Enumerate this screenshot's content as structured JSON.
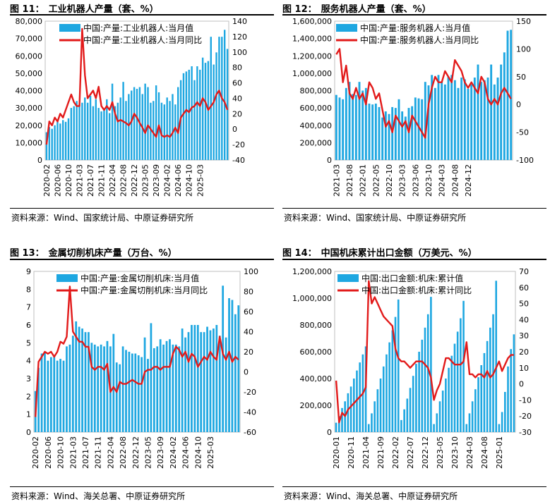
{
  "source_label": "资料来源：",
  "colors": {
    "bar": "#1ea7e1",
    "line": "#e21a1a",
    "frame": "#bfbfbf",
    "text": "#000000"
  },
  "charts": [
    {
      "fig_label": "图 11：",
      "title": "工业机器人产量（套、%）",
      "source": "Wind、国家统计局、中原证券研究所",
      "legend": [
        "中国:产量:工业机器人:当月值",
        "中国:产量:工业机器人:当月同比"
      ],
      "chart_data": {
        "type": "bar+line",
        "x_labels": [
          "2020-02",
          "2020-06",
          "2020-10",
          "2021-03",
          "2021-07",
          "2021-11",
          "2022-04",
          "2022-08",
          "2022-12",
          "2023-05",
          "2023-09",
          "2024-02",
          "2024-06",
          "2024-10",
          "2025-03"
        ],
        "label_every": 4,
        "bars": [
          16000,
          19000,
          18000,
          20000,
          22000,
          21000,
          23000,
          22000,
          24000,
          30000,
          31000,
          34000,
          32000,
          33000,
          36000,
          33000,
          37000,
          31000,
          35000,
          30000,
          28000,
          29000,
          35000,
          27000,
          44000,
          31000,
          33000,
          36000,
          45000,
          34000,
          38000,
          40000,
          42000,
          41000,
          42000,
          38000,
          44000,
          42000,
          33000,
          34000,
          43000,
          39000,
          33000,
          32000,
          36000,
          34000,
          38000,
          32000,
          42000,
          46000,
          50000,
          51000,
          52000,
          54000,
          46000,
          54000,
          52000,
          59000,
          56000,
          57000,
          71000,
          55000,
          62000,
          71000,
          71000,
          75000,
          64000
        ],
        "line": [
          -20,
          10,
          5,
          15,
          10,
          20,
          15,
          25,
          35,
          45,
          35,
          30,
          30,
          130,
          70,
          40,
          45,
          50,
          40,
          55,
          30,
          25,
          30,
          25,
          35,
          20,
          10,
          12,
          10,
          8,
          5,
          10,
          20,
          15,
          8,
          2,
          -5,
          5,
          0,
          -5,
          -10,
          5,
          -8,
          -10,
          -8,
          -10,
          -5,
          2,
          -5,
          15,
          20,
          25,
          22,
          28,
          30,
          35,
          30,
          40,
          35,
          25,
          30,
          35,
          45,
          50,
          40,
          35,
          25
        ],
        "y_left": [
          0,
          80000
        ],
        "y_right": [
          -40,
          140
        ],
        "left_ticks": [
          "0",
          "10,000",
          "20,000",
          "30,000",
          "40,000",
          "50,000",
          "60,000",
          "70,000",
          "80,000"
        ],
        "right_ticks": [
          "-40",
          "-20",
          "0",
          "20",
          "40",
          "60",
          "80",
          "100",
          "120",
          "140"
        ]
      }
    },
    {
      "fig_label": "图 12：",
      "title": "服务机器人产量（套、%）",
      "source": "Wind、国家统计局、中原证券研究所",
      "legend": [
        "中国:产量:服务机器人:当月值",
        "中国:产量:服务机器人:当月同比"
      ],
      "chart_data": {
        "type": "bar+line",
        "x_labels": [
          "2021-03",
          "2021-08",
          "2022-01",
          "2022-05",
          "2022-10",
          "2023-03",
          "2023-06",
          "2023-10",
          "2024-03",
          "2024-08",
          "2024-12"
        ],
        "label_every": 4,
        "bars": [
          750000,
          720000,
          700000,
          830000,
          900000,
          760000,
          750000,
          900000,
          800000,
          830000,
          650000,
          640000,
          650000,
          610000,
          490000,
          560000,
          530000,
          610000,
          600000,
          700000,
          560000,
          500000,
          600000,
          620000,
          720000,
          710000,
          700000,
          900000,
          860000,
          980000,
          830000,
          980000,
          900000,
          870000,
          960000,
          980000,
          920000,
          830000,
          950000,
          930000,
          820000,
          870000,
          950000,
          1100000,
          900000,
          920000,
          950000,
          1100000,
          870000,
          950000,
          1100000,
          1240000,
          1490000,
          1500000
        ],
        "line": [
          90,
          100,
          40,
          70,
          20,
          10,
          30,
          10,
          20,
          0,
          40,
          30,
          10,
          20,
          -10,
          -40,
          -30,
          -50,
          -20,
          -30,
          -40,
          -30,
          -50,
          -20,
          -30,
          -40,
          -50,
          -60,
          0,
          30,
          50,
          40,
          40,
          60,
          50,
          40,
          80,
          70,
          60,
          40,
          30,
          40,
          30,
          20,
          50,
          40,
          10,
          0,
          10,
          0,
          20,
          30,
          20,
          10
        ],
        "y_left": [
          0,
          1600000
        ],
        "y_right": [
          -100,
          150
        ],
        "left_ticks": [
          "0",
          "200,000",
          "400,000",
          "600,000",
          "800,000",
          "1,000,000",
          "1,200,000",
          "1,400,000",
          "1,600,000"
        ],
        "right_ticks": [
          "-100",
          "-50",
          "0",
          "50",
          "100",
          "150"
        ]
      }
    },
    {
      "fig_label": "图 13：",
      "title": "金属切削机床产量（万台、%）",
      "source": "Wind、海关总署、中原证券研究所",
      "legend": [
        "中国:产量:金属切削机床:当月值",
        "中国:产量:金属切削机床:当月同比"
      ],
      "chart_data": {
        "type": "bar+line",
        "x_labels": [
          "2020-02",
          "2020-06",
          "2020-10",
          "2021-03",
          "2021-07",
          "2021-11",
          "2022-04",
          "2022-08",
          "2022-12",
          "2023-05",
          "2023-09",
          "2024-02",
          "2024-06",
          "2024-10",
          "2025-03"
        ],
        "label_every": 4,
        "bars": [
          2.3,
          3.6,
          4.4,
          4.5,
          4.0,
          4.2,
          4.2,
          4.0,
          4.1,
          4.0,
          4.8,
          4.9,
          5.4,
          6.2,
          5.9,
          5.8,
          5.6,
          5.6,
          5.0,
          4.9,
          4.8,
          4.9,
          4.8,
          5.1,
          4.8,
          5.5,
          3.9,
          3.8,
          4.8,
          4.6,
          4.5,
          4.4,
          4.4,
          4.3,
          4.2,
          5.3,
          4.1,
          6.1,
          4.7,
          4.8,
          5.2,
          4.9,
          5.1,
          5.2,
          4.9,
          4.9,
          4.8,
          5.8,
          5.3,
          5.6,
          6.0,
          6.0,
          6.0,
          5.6,
          5.6,
          5.9,
          5.7,
          5.8,
          6.0,
          5.4,
          8.2,
          5.3,
          7.5,
          7.4,
          6.6,
          7.1
        ],
        "line": [
          -45,
          10,
          15,
          20,
          18,
          20,
          15,
          20,
          30,
          28,
          35,
          85,
          40,
          35,
          30,
          30,
          25,
          25,
          5,
          2,
          5,
          5,
          2,
          8,
          -20,
          -15,
          -20,
          -10,
          -12,
          -12,
          -10,
          -8,
          -10,
          -12,
          -12,
          0,
          2,
          2,
          5,
          5,
          2,
          5,
          5,
          5,
          18,
          25,
          22,
          15,
          20,
          10,
          18,
          15,
          5,
          10,
          15,
          12,
          20,
          15,
          12,
          35,
          18,
          12,
          20,
          10,
          15,
          12
        ],
        "y_left": [
          0,
          9
        ],
        "y_right": [
          -60,
          100
        ],
        "left_ticks": [
          "0",
          "1",
          "2",
          "3",
          "4",
          "5",
          "6",
          "7",
          "8",
          "9"
        ],
        "right_ticks": [
          "-60",
          "-40",
          "-20",
          "0",
          "20",
          "40",
          "60",
          "80",
          "100"
        ]
      }
    },
    {
      "fig_label": "图 14：",
      "title": "中国机床累计出口金额（万美元、%）",
      "source": "Wind、海关总署、中原证券研究所",
      "legend": [
        "中国:出口金额:机床:累计值",
        "中国:出口金额:机床:累计同比"
      ],
      "chart_data": {
        "type": "bar+line",
        "x_labels": [
          "2020-01",
          "2020-11",
          "2021-04",
          "2021-09",
          "2022-02",
          "2022-07",
          "2022-12",
          "2023-05",
          "2023-10",
          "2024-03",
          "2024-08",
          "2025-01"
        ],
        "label_every": 5,
        "bars": [
          70000,
          120000,
          180000,
          230000,
          290000,
          340000,
          400000,
          460000,
          520000,
          580000,
          640000,
          60000,
          140000,
          230000,
          320000,
          400000,
          490000,
          580000,
          670000,
          760000,
          860000,
          990000,
          90000,
          170000,
          250000,
          330000,
          420000,
          510000,
          600000,
          690000,
          780000,
          880000,
          1010000,
          60000,
          140000,
          230000,
          310000,
          400000,
          480000,
          570000,
          660000,
          750000,
          850000,
          980000,
          60000,
          140000,
          230000,
          320000,
          410000,
          500000,
          590000,
          680000,
          780000,
          880000,
          1130000,
          60000,
          150000,
          300000,
          490000,
          620000,
          730000
        ],
        "line": [
          2,
          -24,
          -18,
          -20,
          -16,
          -14,
          -12,
          -10,
          -8,
          -6,
          -2,
          64,
          50,
          54,
          50,
          46,
          42,
          40,
          38,
          36,
          22,
          16,
          14,
          14,
          12,
          10,
          12,
          14,
          14,
          14,
          12,
          10,
          4,
          -10,
          -4,
          0,
          8,
          16,
          16,
          14,
          12,
          12,
          12,
          14,
          26,
          6,
          6,
          4,
          6,
          6,
          4,
          8,
          4,
          6,
          10,
          14,
          8,
          12,
          16,
          18,
          18
        ],
        "y_left": [
          0,
          1200000
        ],
        "y_right": [
          -30,
          70
        ],
        "left_ticks": [
          "0",
          "200,000",
          "400,000",
          "600,000",
          "800,000",
          "1,000,000",
          "1,200,000"
        ],
        "right_ticks": [
          "-30",
          "-20",
          "-10",
          "0",
          "10",
          "20",
          "30",
          "40",
          "50",
          "60",
          "70"
        ]
      }
    }
  ]
}
